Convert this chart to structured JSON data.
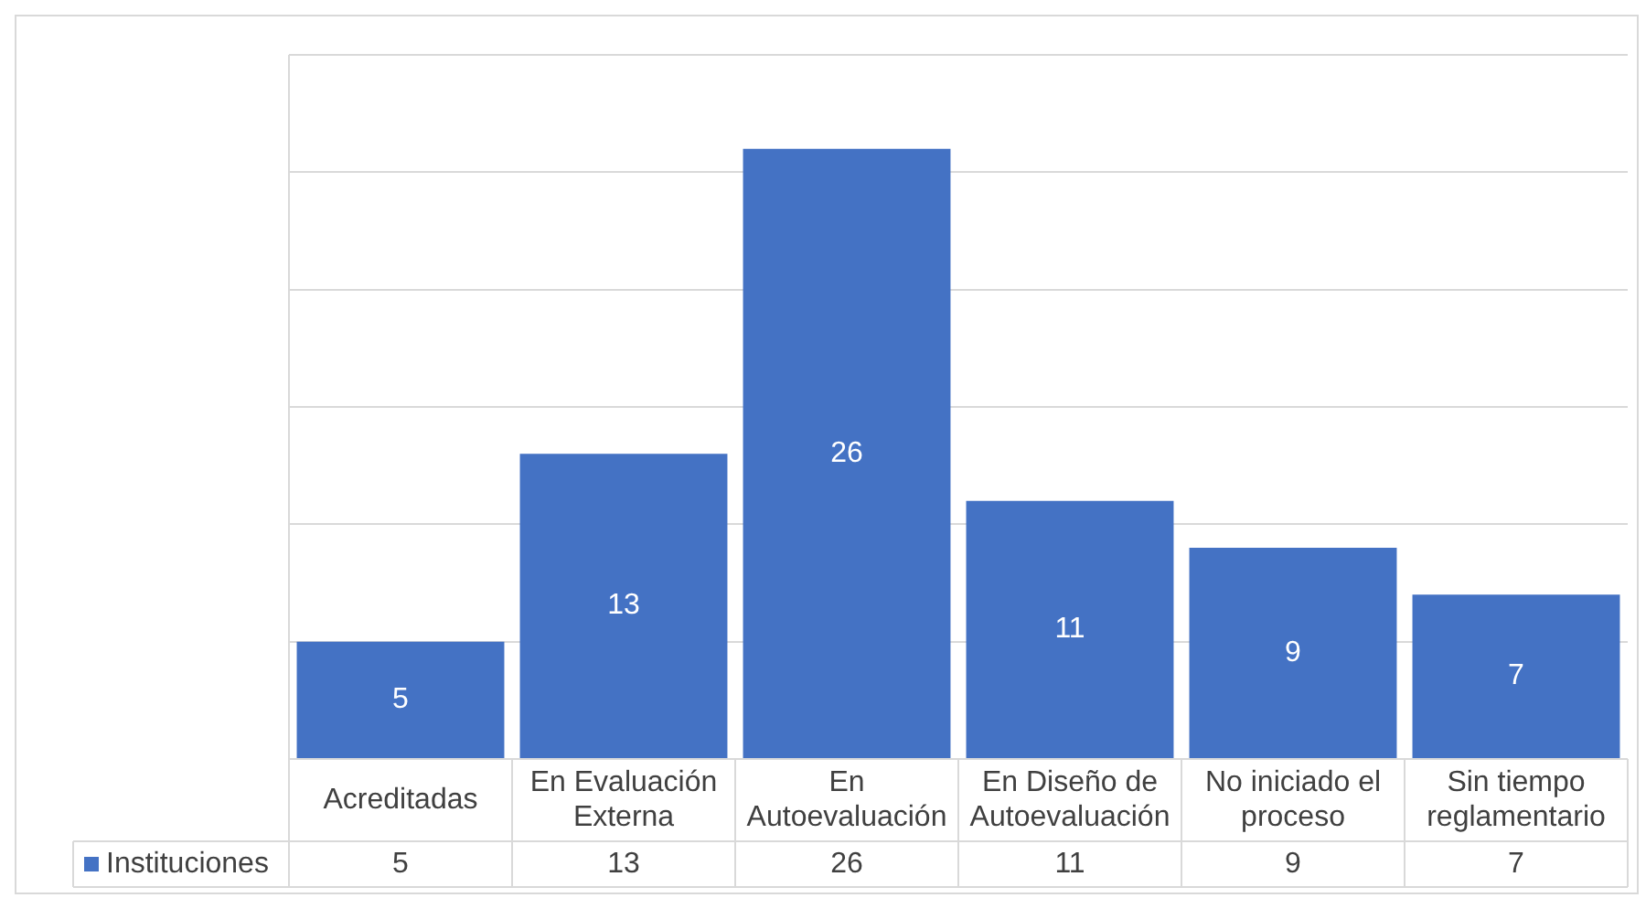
{
  "chart_data": {
    "type": "bar",
    "categories": [
      "Acreditadas",
      "En Evaluación Externa",
      "En Autoevaluación",
      "En Diseño de Autoevaluación",
      "No iniciado el proceso",
      "Sin tiempo reglamentario"
    ],
    "series": [
      {
        "name": "Instituciones",
        "color": "#4472c4",
        "values": [
          5,
          13,
          26,
          11,
          9,
          7
        ]
      }
    ],
    "ylim": [
      0,
      30
    ],
    "yticks": [
      0,
      {
        "value": 5,
        "label": null
      },
      {
        "value": 10,
        "label": null
      },
      {
        "value": 15,
        "label": null
      },
      {
        "value": 20,
        "label": null
      },
      {
        "value": 25,
        "label": null
      },
      {
        "value": 30,
        "label": null
      }
    ],
    "grid": "y",
    "tick_labels": "x",
    "data_labels": true,
    "annotations": [
      "5",
      "13",
      "26",
      "11",
      "9",
      "7"
    ]
  }
}
